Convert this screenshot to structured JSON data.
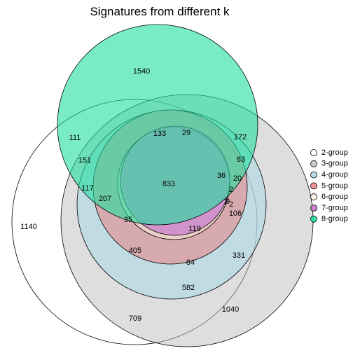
{
  "chart_data": {
    "type": "venn",
    "title": "Signatures from different k",
    "sets": [
      {
        "name": "2-group",
        "color": "#ffffff",
        "fill_opacity": 0.0
      },
      {
        "name": "3-group",
        "color": "#bebebe",
        "fill_opacity": 0.5
      },
      {
        "name": "4-group",
        "color": "#add8e6",
        "fill_opacity": 0.6
      },
      {
        "name": "5-group",
        "color": "#ef6e6e",
        "fill_opacity": 0.45
      },
      {
        "name": "6-group",
        "color": "#fff5dc",
        "fill_opacity": 0.5
      },
      {
        "name": "7-group",
        "color": "#c97fcf",
        "fill_opacity": 0.75
      },
      {
        "name": "8-group",
        "color": "#20df9f",
        "fill_opacity": 0.6
      }
    ],
    "region_counts": [
      "1540",
      "111",
      "172",
      "133",
      "29",
      "151",
      "63",
      "1140",
      "36",
      "20",
      "833",
      "117",
      "207",
      "2",
      "9",
      "7",
      "2",
      "106",
      "35",
      "119",
      "405",
      "84",
      "331",
      "582",
      "1040",
      "709"
    ],
    "legend_position": "right"
  }
}
